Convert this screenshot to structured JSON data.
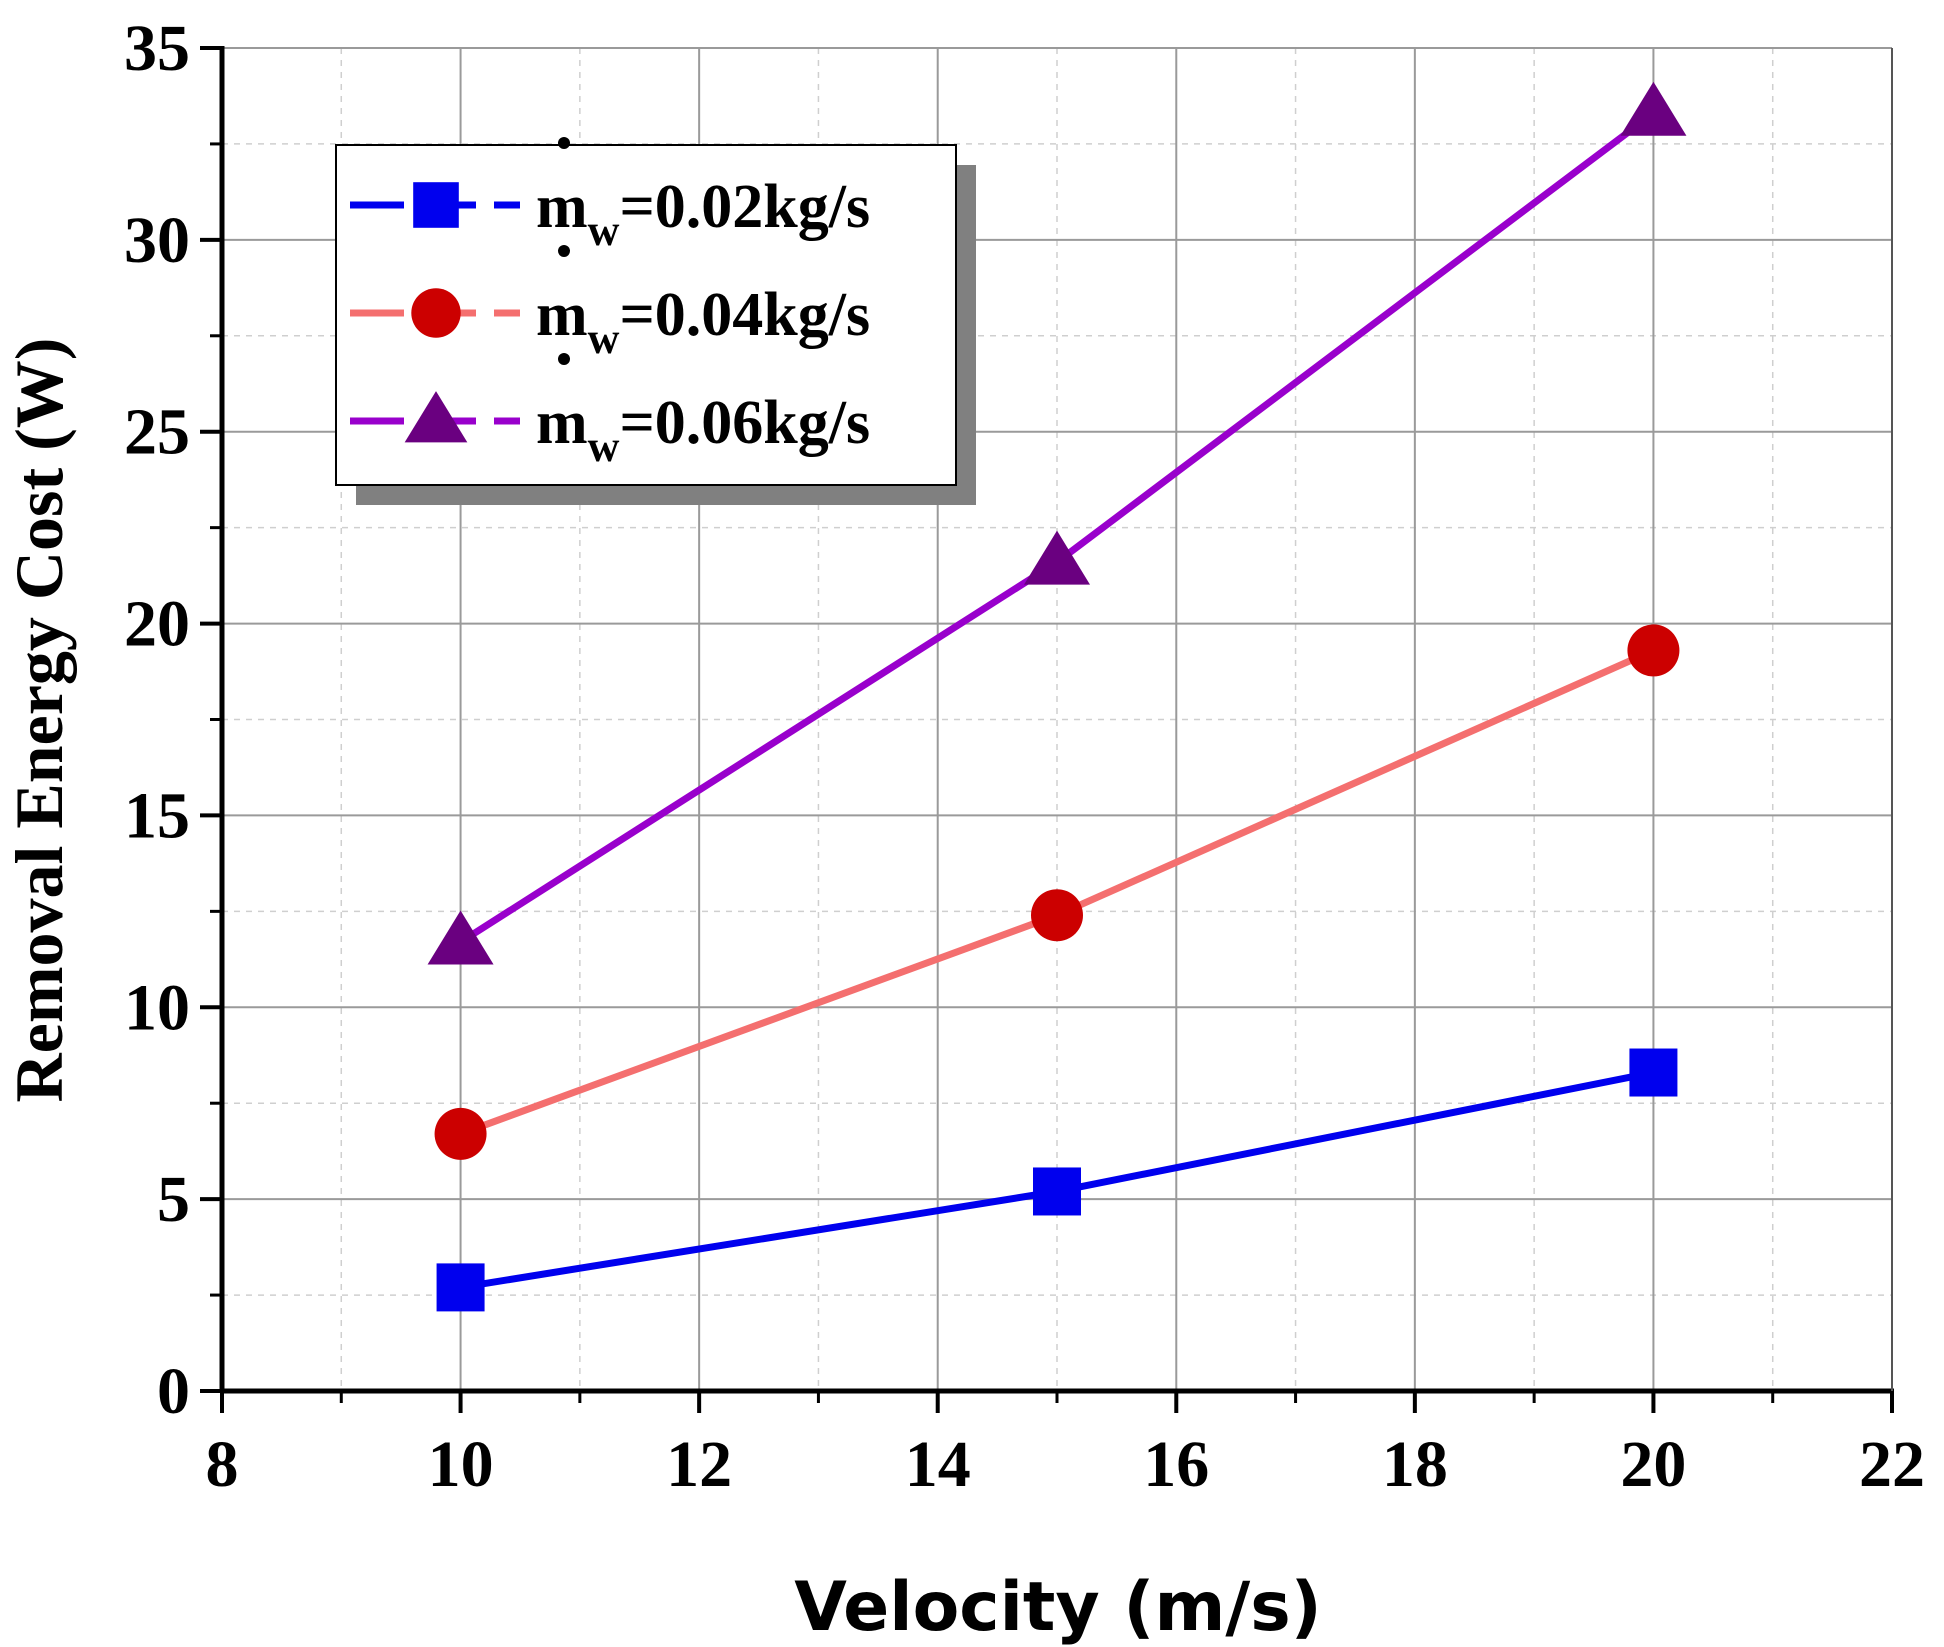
{
  "chart_data": {
    "type": "line",
    "xlabel": "Velocity (m/s)",
    "ylabel": "Removal Energy Cost (W)",
    "xlim": [
      8,
      22
    ],
    "ylim": [
      0,
      35
    ],
    "x_ticks": [
      8,
      10,
      12,
      14,
      16,
      18,
      20,
      22
    ],
    "y_ticks": [
      0,
      5,
      10,
      15,
      20,
      25,
      30,
      35
    ],
    "grid": true,
    "legend_position": "top-left",
    "x": [
      10,
      15,
      20
    ],
    "series": [
      {
        "name": "ṁw=0.02kg/s",
        "legend_main": "m",
        "legend_sub": "w",
        "legend_rest": "=0.02kg/s",
        "marker": "square",
        "line_color": "#0000ee",
        "marker_color": "#0000ee",
        "values": [
          2.7,
          5.2,
          8.3
        ]
      },
      {
        "name": "ṁw=0.04kg/s",
        "legend_main": "m",
        "legend_sub": "w",
        "legend_rest": "=0.04kg/s",
        "marker": "circle",
        "line_color": "#f46f6f",
        "marker_color": "#cc0000",
        "values": [
          6.7,
          12.4,
          19.3
        ]
      },
      {
        "name": "ṁw=0.06kg/s",
        "legend_main": "m",
        "legend_sub": "w",
        "legend_rest": "=0.06kg/s",
        "marker": "triangle",
        "line_color": "#9900cc",
        "marker_color": "#6a0080",
        "values": [
          11.7,
          21.6,
          33.3
        ]
      }
    ]
  }
}
